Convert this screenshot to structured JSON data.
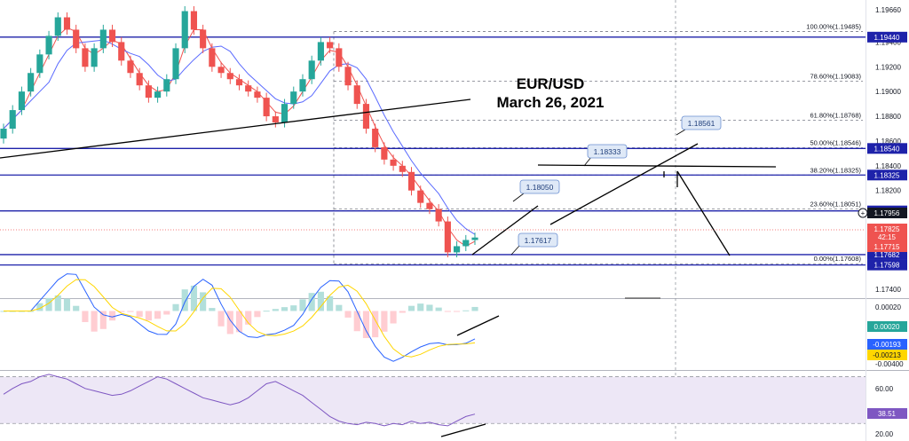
{
  "chart_data": {
    "type": "candlestick",
    "symbol_annotation": {
      "line1": "EUR/USD",
      "line2": "March 26, 2021"
    },
    "price_axis": {
      "ylim": [
        1.1733,
        1.1974
      ],
      "ticks": [
        "1.19660",
        "1.19400",
        "1.19200",
        "1.19000",
        "1.18800",
        "1.18600",
        "1.18400",
        "1.18200",
        "1.17600",
        "1.17400"
      ]
    },
    "horizontal_levels": [
      {
        "label": "1.19440",
        "value": 1.1944,
        "style": "solid"
      },
      {
        "label": "1.18540",
        "value": 1.1854,
        "style": "solid"
      },
      {
        "label": "1.18325",
        "value": 1.18325,
        "style": "solid"
      },
      {
        "label": "1.18035",
        "value": 1.18035,
        "style": "solid"
      },
      {
        "label": "1.17682",
        "value": 1.17682,
        "style": "solid"
      },
      {
        "label": "1.17598",
        "value": 1.17598,
        "style": "solid"
      }
    ],
    "price_badges": [
      {
        "label": "1.17956",
        "kind": "crosshair"
      },
      {
        "label": "1.17825",
        "kind": "current",
        "countdown": "42:15"
      },
      {
        "label": "1.17715",
        "kind": "current-red"
      }
    ],
    "fibonacci": [
      {
        "label": "100.00%(1.19485)",
        "value": 1.19485
      },
      {
        "label": "78.60%(1.19083)",
        "value": 1.19083
      },
      {
        "label": "61.80%(1.18768)",
        "value": 1.18768
      },
      {
        "label": "50.00%(1.18546)",
        "value": 1.18546
      },
      {
        "label": "38.20%(1.18325)",
        "value": 1.18325
      },
      {
        "label": "23.60%(1.18051)",
        "value": 1.18051
      },
      {
        "label": "0.00%(1.17608)",
        "value": 1.17608
      }
    ],
    "callouts": [
      {
        "label": "1.18561"
      },
      {
        "label": "1.18333"
      },
      {
        "label": "1.18050"
      },
      {
        "label": "1.17617"
      }
    ],
    "series": [
      {
        "name": "",
        "values": [
          1.187,
          1.1885,
          1.19,
          1.1915,
          1.193,
          1.1945,
          1.196,
          1.195,
          1.1935,
          1.192,
          1.1935,
          1.195,
          1.194,
          1.1925,
          1.1915,
          1.1905,
          1.1895,
          1.19,
          1.191,
          1.1935,
          1.1965,
          1.195,
          1.1935,
          1.192,
          1.1915,
          1.191,
          1.1905,
          1.19,
          1.1895,
          1.188,
          1.1875,
          1.189,
          1.19,
          1.191,
          1.1925,
          1.194,
          1.1935,
          1.192,
          1.1905,
          1.189,
          1.187,
          1.1855,
          1.1845,
          1.184,
          1.1835,
          1.182,
          1.181,
          1.1805,
          1.1795,
          1.177,
          1.1775,
          1.178,
          1.1782
        ]
      }
    ],
    "macd": {
      "ticks": [
        "0.00020",
        "-0.00400"
      ],
      "badges": [
        {
          "label": "0.00020",
          "kind": "histogram"
        },
        {
          "label": "-0.00193",
          "kind": "macd"
        },
        {
          "label": "-0.00213",
          "kind": "signal"
        }
      ],
      "ylim": [
        -0.0042,
        0.0008
      ]
    },
    "rsi": {
      "ticks": [
        "60.00",
        "20.00"
      ],
      "badge": "38.51",
      "band": [
        30,
        70
      ],
      "ylim": [
        15,
        75
      ],
      "values": [
        55,
        60,
        64,
        66,
        70,
        72,
        70,
        68,
        64,
        60,
        58,
        56,
        54,
        55,
        58,
        62,
        66,
        70,
        68,
        64,
        60,
        56,
        52,
        50,
        48,
        46,
        48,
        52,
        58,
        64,
        66,
        62,
        58,
        54,
        48,
        42,
        36,
        32,
        30,
        29,
        31,
        30,
        28,
        30,
        29,
        32,
        30,
        31,
        29,
        28,
        32,
        36,
        38
      ]
    },
    "colors": {
      "up": "#26a69a",
      "down": "#ef5350",
      "level": "#1e22aa",
      "ma_fast": "#ef5350",
      "ma_slow": "#5b6bff",
      "macd_line": "#2962ff",
      "signal_line": "#ffd600",
      "rsi_line": "#7e57c2",
      "rsi_band": "#ede7f6"
    }
  }
}
